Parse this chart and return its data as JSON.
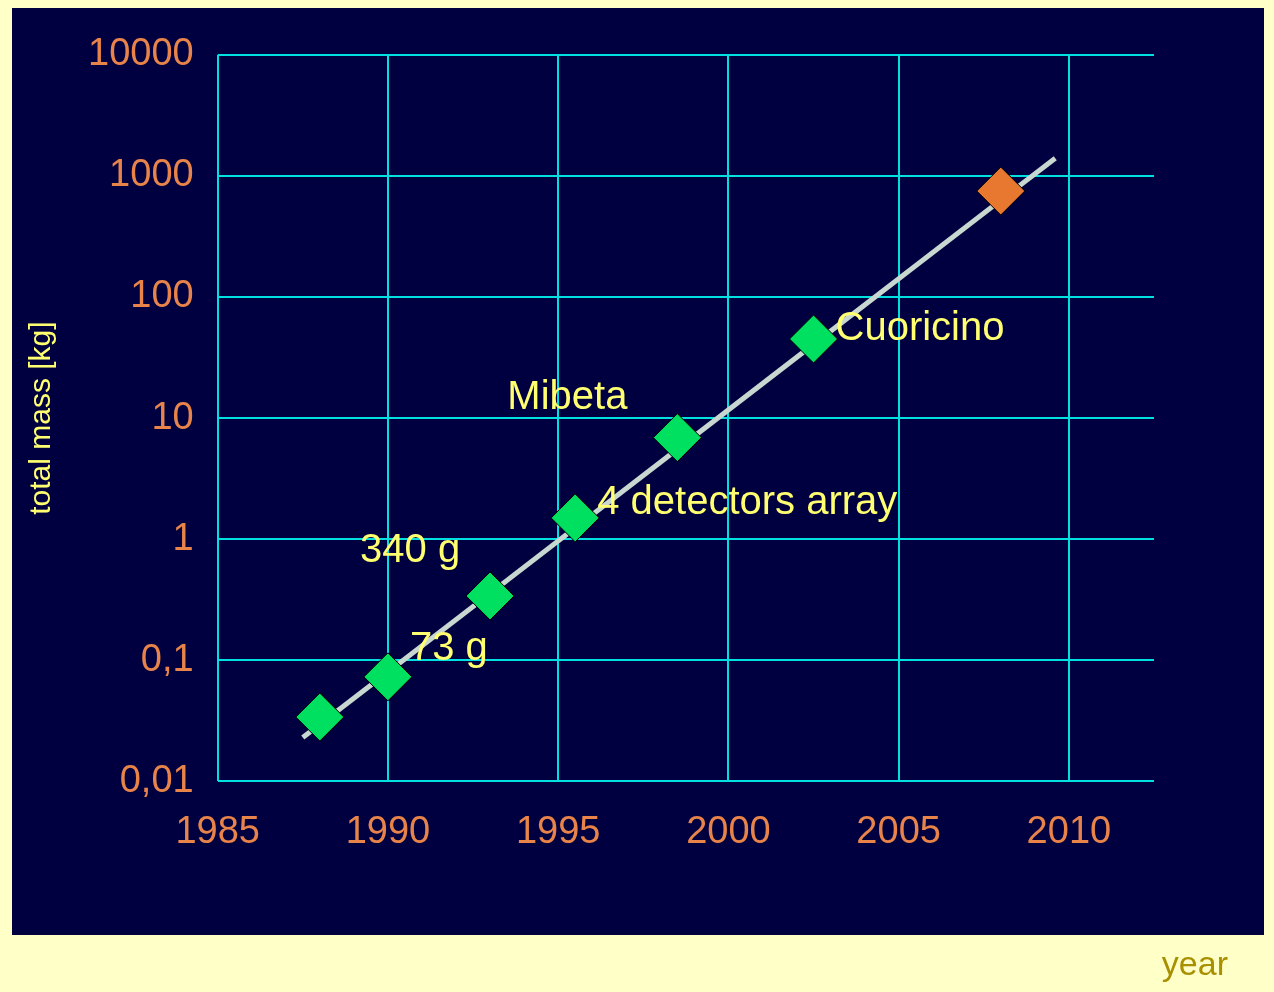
{
  "chart_data": {
    "type": "scatter",
    "xlabel": "year",
    "ylabel": "total mass [kg]",
    "log": "y",
    "grid": true,
    "legend": false,
    "xlim": [
      1985,
      2012.5
    ],
    "xticks": [
      1985,
      1990,
      1995,
      2000,
      2005,
      2010
    ],
    "ylim": [
      0.01,
      10000
    ],
    "yticks": [
      {
        "value": 0.01,
        "label": "0,01"
      },
      {
        "value": 0.1,
        "label": "0,1"
      },
      1,
      10,
      100,
      1000,
      10000
    ],
    "series": [
      {
        "type": "line",
        "x": [
          1987.5,
          2009.6
        ],
        "values": [
          0.023,
          1400
        ],
        "color": "#c8d8d0"
      },
      {
        "marker": "diamond",
        "x": [
          1988,
          1990,
          1993,
          1995.5,
          1998.5,
          2002.5,
          2008
        ],
        "values": [
          0.034,
          0.073,
          0.34,
          1.5,
          6.9,
          45,
          750
        ],
        "colors": [
          "#00e060",
          "#00e060",
          "#00e060",
          "#00e060",
          "#00e060",
          "#00e060",
          "#e87830"
        ]
      }
    ],
    "annotations": [
      {
        "text": "73 g",
        "x": 1990,
        "y": 0.073
      },
      {
        "text": "340 g",
        "x": 1993,
        "y": 0.34
      },
      {
        "text": "4 detectors array",
        "x": 1995.5,
        "y": 1.5
      },
      {
        "text": "Mibeta",
        "x": 1998.5,
        "y": 6.9
      },
      {
        "text": "Cuoricino",
        "x": 2002.5,
        "y": 45
      }
    ]
  }
}
